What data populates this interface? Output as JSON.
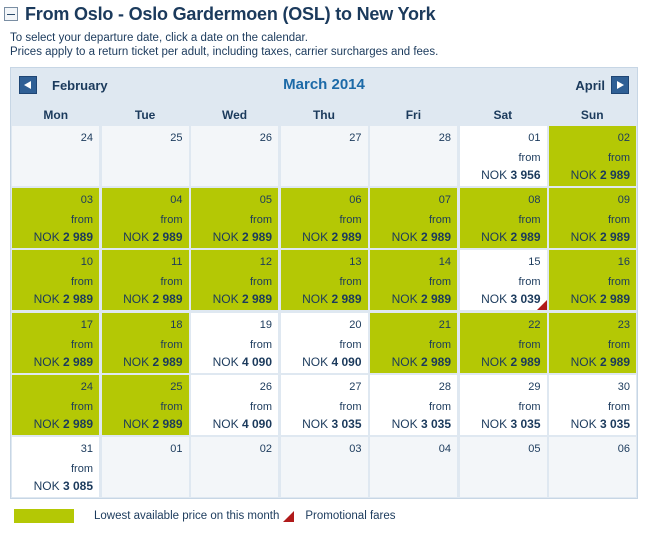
{
  "header": {
    "title": "From Oslo - Oslo Gardermoen (OSL) to New York",
    "instructions": [
      "To select your departure date, click a date on the calendar.",
      "Prices apply to a return ticket per adult, including taxes, carrier surcharges and fees."
    ]
  },
  "calendar": {
    "prev_month": "February",
    "current_month": "March 2014",
    "next_month": "April",
    "weekdays": [
      "Mon",
      "Tue",
      "Wed",
      "Thu",
      "Fri",
      "Sat",
      "Sun"
    ],
    "currency": "NOK",
    "from_label": "from",
    "colors": {
      "lowest": "#b4c805",
      "promo": "#b01a1a",
      "available": "#ffffff",
      "disabled": "#f3f6f9",
      "month_title": "#1c6aa8"
    },
    "weeks": [
      [
        {
          "date": "24",
          "state": "empty"
        },
        {
          "date": "25",
          "state": "empty"
        },
        {
          "date": "26",
          "state": "empty"
        },
        {
          "date": "27",
          "state": "empty"
        },
        {
          "date": "28",
          "state": "empty"
        },
        {
          "date": "01",
          "state": "available",
          "from": "from",
          "currency": "NOK",
          "price": "3 956"
        },
        {
          "date": "02",
          "state": "lowest",
          "from": "from",
          "currency": "NOK",
          "price": "2 989"
        }
      ],
      [
        {
          "date": "03",
          "state": "lowest",
          "from": "from",
          "currency": "NOK",
          "price": "2 989"
        },
        {
          "date": "04",
          "state": "lowest",
          "from": "from",
          "currency": "NOK",
          "price": "2 989"
        },
        {
          "date": "05",
          "state": "lowest",
          "from": "from",
          "currency": "NOK",
          "price": "2 989"
        },
        {
          "date": "06",
          "state": "lowest",
          "from": "from",
          "currency": "NOK",
          "price": "2 989"
        },
        {
          "date": "07",
          "state": "lowest",
          "from": "from",
          "currency": "NOK",
          "price": "2 989"
        },
        {
          "date": "08",
          "state": "lowest",
          "from": "from",
          "currency": "NOK",
          "price": "2 989"
        },
        {
          "date": "09",
          "state": "lowest",
          "from": "from",
          "currency": "NOK",
          "price": "2 989"
        }
      ],
      [
        {
          "date": "10",
          "state": "lowest",
          "from": "from",
          "currency": "NOK",
          "price": "2 989"
        },
        {
          "date": "11",
          "state": "lowest",
          "from": "from",
          "currency": "NOK",
          "price": "2 989"
        },
        {
          "date": "12",
          "state": "lowest",
          "from": "from",
          "currency": "NOK",
          "price": "2 989"
        },
        {
          "date": "13",
          "state": "lowest",
          "from": "from",
          "currency": "NOK",
          "price": "2 989"
        },
        {
          "date": "14",
          "state": "lowest",
          "from": "from",
          "currency": "NOK",
          "price": "2 989"
        },
        {
          "date": "15",
          "state": "available",
          "promo": true,
          "from": "from",
          "currency": "NOK",
          "price": "3 039"
        },
        {
          "date": "16",
          "state": "lowest",
          "from": "from",
          "currency": "NOK",
          "price": "2 989"
        }
      ],
      [
        {
          "date": "17",
          "state": "lowest",
          "from": "from",
          "currency": "NOK",
          "price": "2 989"
        },
        {
          "date": "18",
          "state": "lowest",
          "from": "from",
          "currency": "NOK",
          "price": "2 989"
        },
        {
          "date": "19",
          "state": "available",
          "from": "from",
          "currency": "NOK",
          "price": "4 090"
        },
        {
          "date": "20",
          "state": "available",
          "from": "from",
          "currency": "NOK",
          "price": "4 090"
        },
        {
          "date": "21",
          "state": "lowest",
          "from": "from",
          "currency": "NOK",
          "price": "2 989"
        },
        {
          "date": "22",
          "state": "lowest",
          "from": "from",
          "currency": "NOK",
          "price": "2 989"
        },
        {
          "date": "23",
          "state": "lowest",
          "from": "from",
          "currency": "NOK",
          "price": "2 989"
        }
      ],
      [
        {
          "date": "24",
          "state": "lowest",
          "from": "from",
          "currency": "NOK",
          "price": "2 989"
        },
        {
          "date": "25",
          "state": "lowest",
          "from": "from",
          "currency": "NOK",
          "price": "2 989"
        },
        {
          "date": "26",
          "state": "available",
          "from": "from",
          "currency": "NOK",
          "price": "4 090"
        },
        {
          "date": "27",
          "state": "available",
          "from": "from",
          "currency": "NOK",
          "price": "3 035"
        },
        {
          "date": "28",
          "state": "available",
          "from": "from",
          "currency": "NOK",
          "price": "3 035"
        },
        {
          "date": "29",
          "state": "available",
          "from": "from",
          "currency": "NOK",
          "price": "3 035"
        },
        {
          "date": "30",
          "state": "available",
          "from": "from",
          "currency": "NOK",
          "price": "3 035"
        }
      ],
      [
        {
          "date": "31",
          "state": "available",
          "from": "from",
          "currency": "NOK",
          "price": "3 085"
        },
        {
          "date": "01",
          "state": "empty"
        },
        {
          "date": "02",
          "state": "empty"
        },
        {
          "date": "03",
          "state": "empty"
        },
        {
          "date": "04",
          "state": "empty"
        },
        {
          "date": "05",
          "state": "empty"
        },
        {
          "date": "06",
          "state": "empty"
        }
      ]
    ]
  },
  "legend": {
    "lowest_label": "Lowest available price on this month",
    "promo_label": "Promotional fares"
  }
}
